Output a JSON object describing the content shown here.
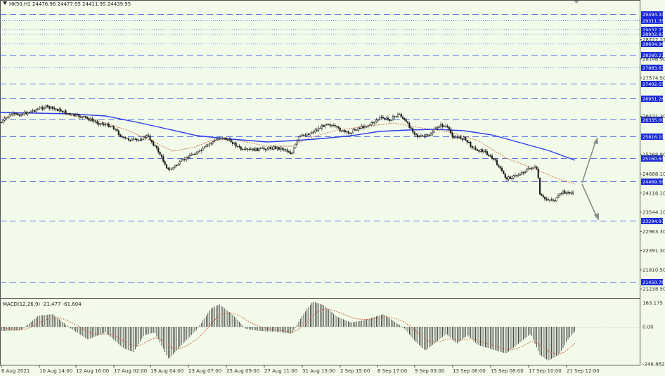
{
  "symbol_header": "HK50,H1  24476.96 24477.95 24411.95 24439.95",
  "macd_header": "MACD(12,26,9) -21.477 -61.604",
  "colors": {
    "background": "#f2fbe9",
    "level_line": "#5b78e8",
    "label_bg": "#1a2bd6",
    "ma_slow": "#2a3cf0",
    "ma_fast": "#d2603c",
    "arrow": "#8c8c8c",
    "candle": "#1a1a1a"
  },
  "levels": [
    {
      "price": "29494.33",
      "style": "dashed",
      "labeled": true
    },
    {
      "price": "29311.35",
      "style": "dotted",
      "labeled": true
    },
    {
      "price": "29037.73",
      "style": "dotted",
      "labeled": true
    },
    {
      "price": "28902.83",
      "style": "dotted",
      "labeled": true
    },
    {
      "price": "28604.96",
      "style": "dotted",
      "labeled": true
    },
    {
      "price": "28260.27",
      "style": "dashed",
      "labeled": true
    },
    {
      "price": "27883.67",
      "style": "dotted",
      "labeled": true
    },
    {
      "price": "27402.55",
      "style": "dashed",
      "labeled": true
    },
    {
      "price": "26951.26",
      "style": "dashed",
      "labeled": true
    },
    {
      "price": "26335.00",
      "style": "dashed",
      "labeled": true
    },
    {
      "price": "25816.19",
      "style": "dashed",
      "labeled": true
    },
    {
      "price": "25160.63",
      "style": "dashed",
      "labeled": true
    },
    {
      "price": "24469.58",
      "style": "dashed",
      "labeled": true
    },
    {
      "price": "23294.97",
      "style": "dashed",
      "labeled": true
    },
    {
      "price": "21450.78",
      "style": "dashed",
      "labeled": true
    }
  ],
  "price_axis_ticks": [
    "28727.22",
    "28146.90",
    "27574.50",
    "26421.30",
    "25268.90",
    "24688.10",
    "24116.10",
    "23544.10",
    "22963.30",
    "22391.30",
    "21810.50",
    "21238.50"
  ],
  "macd_axis_ticks": [
    "163.175",
    "0.00",
    "-248.862"
  ],
  "time_axis": [
    "6 Aug 2021",
    "10 Aug 14:00",
    "12 Aug 16:00",
    "17 Aug 02:00",
    "19 Aug 04:00",
    "23 Aug 07:00",
    "25 Aug 09:00",
    "27 Aug 11:00",
    "31 Aug 13:00",
    "2 Sep 15:00",
    "6 Sep 17:00",
    "9 Sep 03:00",
    "13 Sep 06:00",
    "15 Sep 08:00",
    "17 Sep 10:00",
    "21 Sep 12:00"
  ],
  "projection_arrows": [
    "up-arrow",
    "down-arrow"
  ]
}
